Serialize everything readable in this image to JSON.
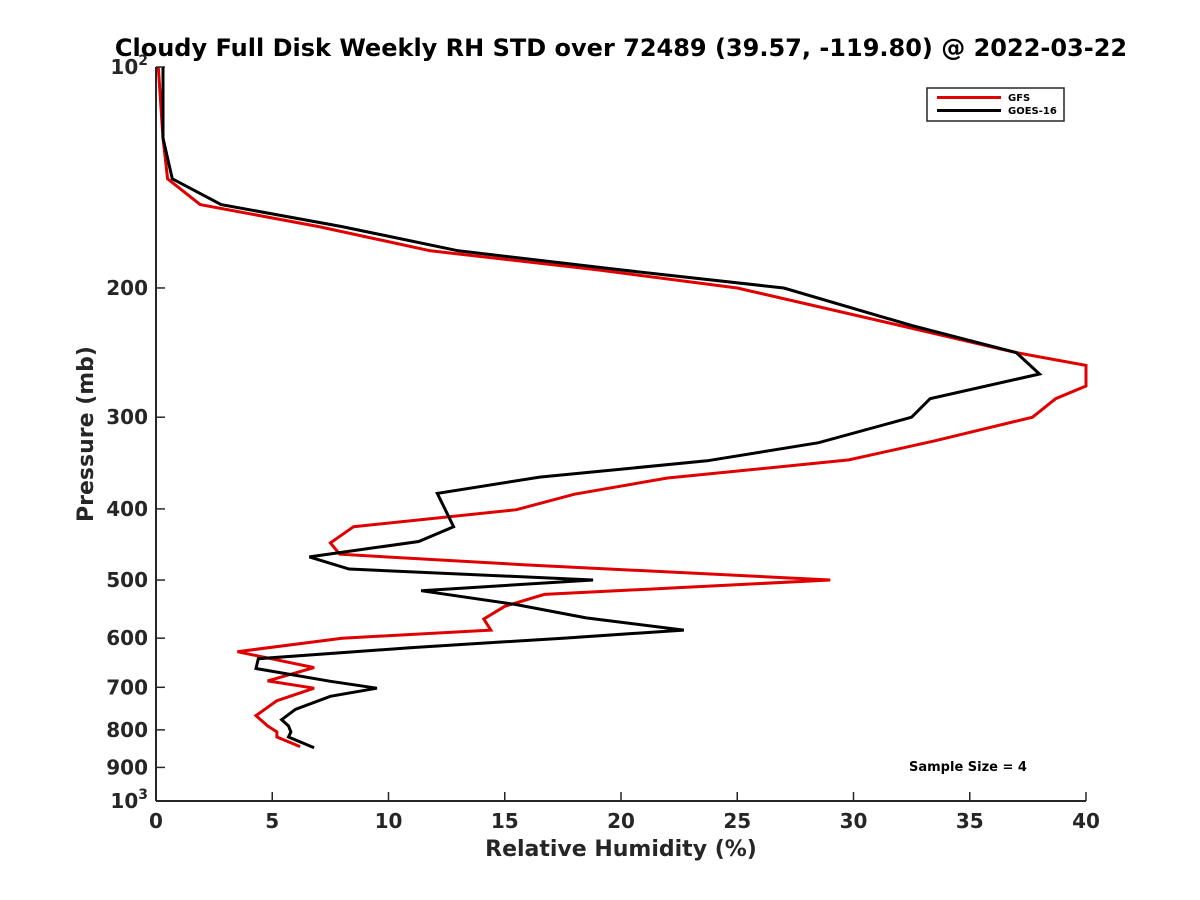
{
  "chart_data": {
    "type": "line",
    "title": "Cloudy Full Disk Weekly RH STD over 72489 (39.57, -119.80) @ 2022-03-22",
    "xlabel": "Relative Humidity (%)",
    "ylabel": "Pressure (mb)",
    "xlim": [
      0,
      40
    ],
    "ylim": [
      100,
      1000
    ],
    "y_scale": "log",
    "y_reversed": true,
    "x_ticks": [
      "0",
      "5",
      "10",
      "15",
      "20",
      "25",
      "30",
      "35",
      "40"
    ],
    "y_ticks": [
      {
        "value": 100,
        "base": "10",
        "exp": "2"
      },
      {
        "value": 200,
        "label": "200"
      },
      {
        "value": 300,
        "label": "300"
      },
      {
        "value": 400,
        "label": "400"
      },
      {
        "value": 500,
        "label": "500"
      },
      {
        "value": 600,
        "label": "600"
      },
      {
        "value": 700,
        "label": "700"
      },
      {
        "value": 800,
        "label": "800"
      },
      {
        "value": 900,
        "label": "900"
      },
      {
        "value": 1000,
        "base": "10",
        "exp": "3"
      }
    ],
    "legend_position": "top-right",
    "grid": false,
    "annotation": "Sample Size = 4",
    "series": [
      {
        "name": "GFS",
        "color": "#e00000",
        "points": [
          {
            "rh": 0.1,
            "p": 100
          },
          {
            "rh": 0.3,
            "p": 125
          },
          {
            "rh": 0.5,
            "p": 142
          },
          {
            "rh": 1.9,
            "p": 154
          },
          {
            "rh": 7.0,
            "p": 165
          },
          {
            "rh": 11.8,
            "p": 178
          },
          {
            "rh": 19.0,
            "p": 189
          },
          {
            "rh": 25.0,
            "p": 200
          },
          {
            "rh": 32.0,
            "p": 225
          },
          {
            "rh": 37.0,
            "p": 245
          },
          {
            "rh": 40.0,
            "p": 255
          },
          {
            "rh": 40.0,
            "p": 272
          },
          {
            "rh": 38.7,
            "p": 283
          },
          {
            "rh": 37.7,
            "p": 300
          },
          {
            "rh": 33.5,
            "p": 323
          },
          {
            "rh": 29.8,
            "p": 343
          },
          {
            "rh": 22.0,
            "p": 363
          },
          {
            "rh": 18.0,
            "p": 382
          },
          {
            "rh": 15.5,
            "p": 401
          },
          {
            "rh": 8.5,
            "p": 423
          },
          {
            "rh": 7.5,
            "p": 445
          },
          {
            "rh": 7.9,
            "p": 461
          },
          {
            "rh": 16.0,
            "p": 477
          },
          {
            "rh": 29.0,
            "p": 500
          },
          {
            "rh": 16.7,
            "p": 523
          },
          {
            "rh": 15.0,
            "p": 543
          },
          {
            "rh": 14.1,
            "p": 565
          },
          {
            "rh": 14.4,
            "p": 585
          },
          {
            "rh": 8.0,
            "p": 600
          },
          {
            "rh": 3.5,
            "p": 626
          },
          {
            "rh": 6.8,
            "p": 658
          },
          {
            "rh": 4.8,
            "p": 686
          },
          {
            "rh": 6.8,
            "p": 702
          },
          {
            "rh": 5.2,
            "p": 730
          },
          {
            "rh": 4.3,
            "p": 765
          },
          {
            "rh": 4.8,
            "p": 790
          },
          {
            "rh": 5.2,
            "p": 805
          },
          {
            "rh": 5.2,
            "p": 818
          },
          {
            "rh": 6.2,
            "p": 843
          }
        ]
      },
      {
        "name": "GOES-16",
        "color": "#000000",
        "points": [
          {
            "rh": 0.3,
            "p": 100
          },
          {
            "rh": 0.3,
            "p": 125
          },
          {
            "rh": 0.7,
            "p": 142
          },
          {
            "rh": 2.8,
            "p": 154
          },
          {
            "rh": 8.0,
            "p": 165
          },
          {
            "rh": 13.0,
            "p": 178
          },
          {
            "rh": 20.0,
            "p": 189
          },
          {
            "rh": 27.0,
            "p": 200
          },
          {
            "rh": 32.5,
            "p": 225
          },
          {
            "rh": 37.0,
            "p": 245
          },
          {
            "rh": 38.0,
            "p": 262
          },
          {
            "rh": 33.3,
            "p": 283
          },
          {
            "rh": 32.5,
            "p": 300
          },
          {
            "rh": 28.5,
            "p": 325
          },
          {
            "rh": 23.7,
            "p": 344
          },
          {
            "rh": 16.5,
            "p": 362
          },
          {
            "rh": 12.1,
            "p": 381
          },
          {
            "rh": 12.8,
            "p": 423
          },
          {
            "rh": 11.3,
            "p": 443
          },
          {
            "rh": 6.6,
            "p": 465
          },
          {
            "rh": 8.3,
            "p": 483
          },
          {
            "rh": 18.8,
            "p": 500
          },
          {
            "rh": 11.4,
            "p": 517
          },
          {
            "rh": 15.5,
            "p": 540
          },
          {
            "rh": 18.5,
            "p": 563
          },
          {
            "rh": 22.7,
            "p": 585
          },
          {
            "rh": 17.5,
            "p": 600
          },
          {
            "rh": 11.0,
            "p": 618
          },
          {
            "rh": 4.4,
            "p": 640
          },
          {
            "rh": 4.3,
            "p": 660
          },
          {
            "rh": 7.5,
            "p": 687
          },
          {
            "rh": 9.5,
            "p": 702
          },
          {
            "rh": 7.5,
            "p": 720
          },
          {
            "rh": 6.0,
            "p": 750
          },
          {
            "rh": 5.4,
            "p": 775
          },
          {
            "rh": 5.7,
            "p": 790
          },
          {
            "rh": 5.8,
            "p": 805
          },
          {
            "rh": 5.7,
            "p": 818
          },
          {
            "rh": 6.8,
            "p": 846
          }
        ]
      }
    ]
  }
}
